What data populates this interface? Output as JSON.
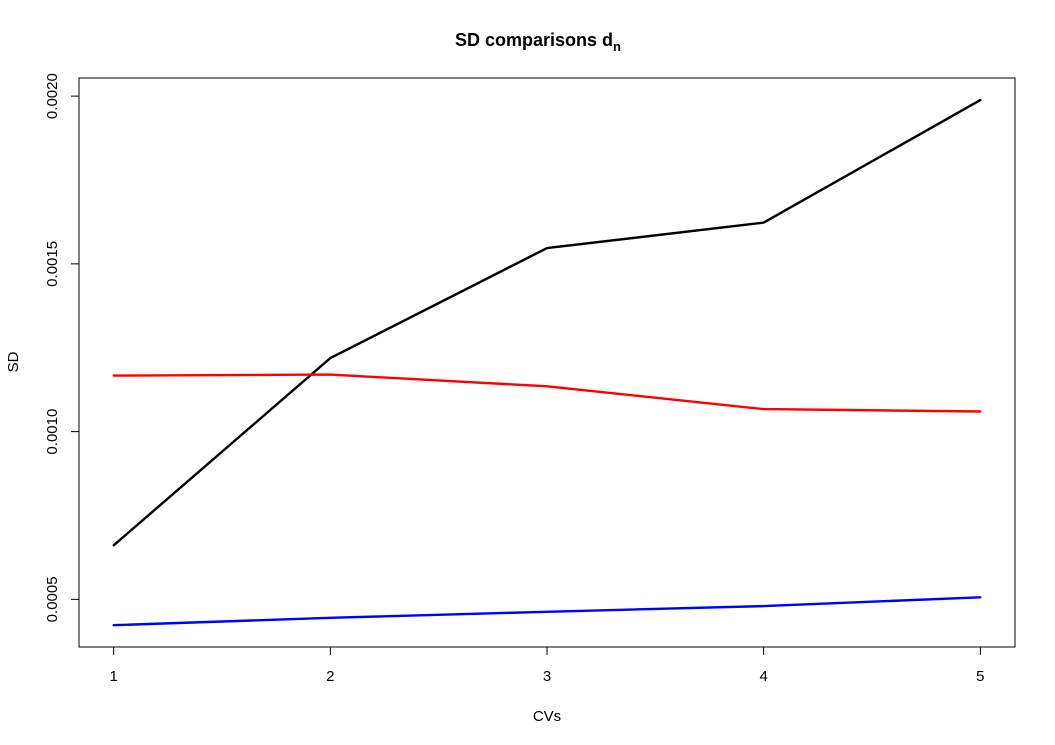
{
  "chart_data": {
    "type": "line",
    "title": "SD comparisons d",
    "title_subscript": "n",
    "xlabel": "CVs",
    "ylabel": "SD",
    "x": [
      1,
      2,
      3,
      4,
      5
    ],
    "x_ticks": [
      "1",
      "2",
      "3",
      "4",
      "5"
    ],
    "y_ticks": [
      "0.0005",
      "0.0010",
      "0.0015",
      "0.0020"
    ],
    "y_tick_values": [
      0.0005,
      0.001,
      0.0015,
      0.002
    ],
    "xlim": [
      0.84,
      5.16
    ],
    "ylim": [
      0.000358,
      0.002054
    ],
    "grid": false,
    "legend": "none",
    "series": [
      {
        "color": "#000000",
        "values": [
          0.000661,
          0.001219,
          0.001547,
          0.001623,
          0.001988
        ]
      },
      {
        "color": "#ff0000",
        "values": [
          0.001167,
          0.00117,
          0.001135,
          0.001067,
          0.00106
        ]
      },
      {
        "color": "#0000ff",
        "values": [
          0.000423,
          0.000445,
          0.000463,
          0.00048,
          0.000506
        ]
      }
    ]
  }
}
